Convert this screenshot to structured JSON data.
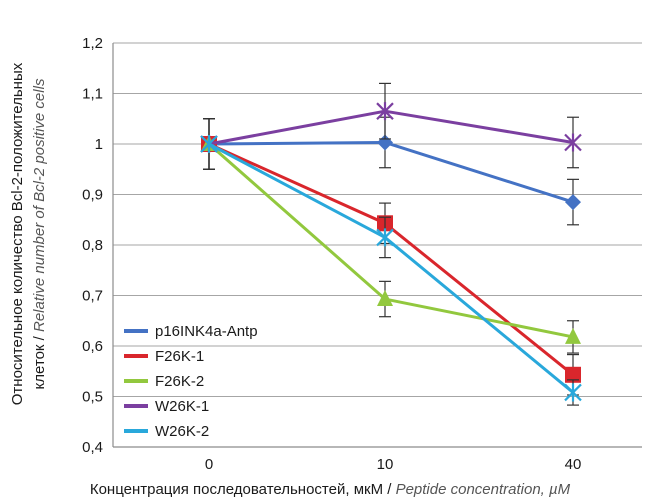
{
  "chart_data": {
    "type": "line",
    "categories": [
      "0",
      "10",
      "40"
    ],
    "ylim": [
      0.4,
      1.2
    ],
    "yticks": [
      "0,4",
      "0,5",
      "0,6",
      "0,7",
      "0,8",
      "0,9",
      "1",
      "1,1",
      "1,2"
    ],
    "grid": true,
    "legend_position": "bottom-left",
    "xlabel": {
      "main": "Концентрация последовательностей, мкМ / ",
      "italic": "Peptide concentration, µM"
    },
    "ylabel": {
      "line1": "Относительное количество Bcl-2-положительных",
      "line2_main": "клеток / ",
      "line2_italic": "Relative number of Bcl-2 positive cells"
    },
    "series": [
      {
        "name": "p16INK4a-Antp",
        "color": "#4472C4",
        "marker": "diamond",
        "values": [
          1.0,
          1.003,
          0.885
        ],
        "errors": [
          0.05,
          0.05,
          0.045
        ]
      },
      {
        "name": "F26K-1",
        "color": "#D9262C",
        "marker": "square",
        "values": [
          1.0,
          0.843,
          0.543
        ],
        "errors": [
          0.05,
          0.04,
          0.04
        ]
      },
      {
        "name": "F26K-2",
        "color": "#92C83E",
        "marker": "triangle",
        "values": [
          1.0,
          0.693,
          0.618
        ],
        "errors": [
          0.05,
          0.035,
          0.032
        ]
      },
      {
        "name": "W26K-1",
        "color": "#7B3FA0",
        "marker": "x",
        "values": [
          1.0,
          1.065,
          1.003
        ],
        "errors": [
          0.05,
          0.055,
          0.05
        ]
      },
      {
        "name": "W26K-2",
        "color": "#29A8DB",
        "marker": "x",
        "values": [
          1.0,
          0.815,
          0.508
        ],
        "errors": [
          0.05,
          0.04,
          0.025
        ]
      }
    ]
  }
}
